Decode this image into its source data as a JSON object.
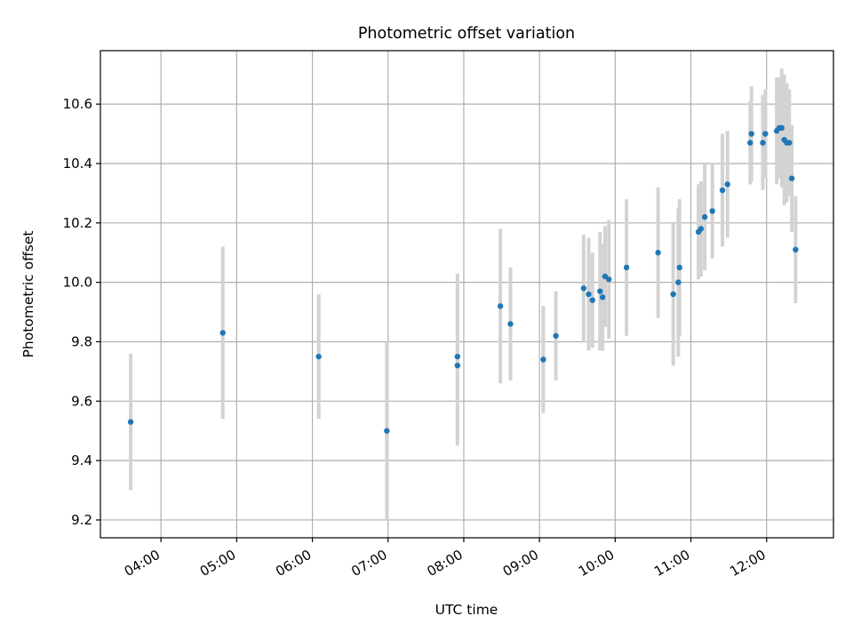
{
  "chart_data": {
    "type": "scatter",
    "title": "Photometric offset variation",
    "xlabel": "UTC time",
    "ylabel": "Photometric offset",
    "x_ticks": [
      "04:00",
      "05:00",
      "06:00",
      "07:00",
      "08:00",
      "09:00",
      "10:00",
      "11:00",
      "12:00"
    ],
    "y_ticks": [
      "9.2",
      "9.4",
      "9.6",
      "9.8",
      "10.0",
      "10.2",
      "10.4",
      "10.6"
    ],
    "xlim": [
      "03:12",
      "12:53"
    ],
    "ylim": [
      9.14,
      10.78
    ],
    "grid": true,
    "colors": {
      "points": "#1f77b4",
      "errorbars": "#d3d3d3",
      "grid": "#b0b0b0"
    },
    "points": [
      {
        "x": "03:36",
        "y": 9.53,
        "err": 0.23
      },
      {
        "x": "04:49",
        "y": 9.83,
        "err": 0.29
      },
      {
        "x": "06:05",
        "y": 9.75,
        "err": 0.21
      },
      {
        "x": "06:59",
        "y": 9.5,
        "err": 0.3
      },
      {
        "x": "07:55",
        "y": 9.72,
        "err": 0.27
      },
      {
        "x": "07:55",
        "y": 9.75,
        "err": 0.28
      },
      {
        "x": "08:29",
        "y": 9.92,
        "err": 0.26
      },
      {
        "x": "08:37",
        "y": 9.86,
        "err": 0.19
      },
      {
        "x": "09:03",
        "y": 9.74,
        "err": 0.18
      },
      {
        "x": "09:13",
        "y": 9.82,
        "err": 0.15
      },
      {
        "x": "09:35",
        "y": 9.98,
        "err": 0.18
      },
      {
        "x": "09:39",
        "y": 9.96,
        "err": 0.19
      },
      {
        "x": "09:42",
        "y": 9.94,
        "err": 0.16
      },
      {
        "x": "09:48",
        "y": 9.97,
        "err": 0.2
      },
      {
        "x": "09:50",
        "y": 9.95,
        "err": 0.18
      },
      {
        "x": "09:52",
        "y": 10.02,
        "err": 0.17
      },
      {
        "x": "09:55",
        "y": 10.01,
        "err": 0.2
      },
      {
        "x": "10:09",
        "y": 10.05,
        "err": 0.23
      },
      {
        "x": "10:34",
        "y": 10.1,
        "err": 0.22
      },
      {
        "x": "10:46",
        "y": 9.96,
        "err": 0.24
      },
      {
        "x": "10:50",
        "y": 10.0,
        "err": 0.25
      },
      {
        "x": "10:51",
        "y": 10.05,
        "err": 0.23
      },
      {
        "x": "11:06",
        "y": 10.17,
        "err": 0.16
      },
      {
        "x": "11:08",
        "y": 10.18,
        "err": 0.16
      },
      {
        "x": "11:11",
        "y": 10.22,
        "err": 0.18
      },
      {
        "x": "11:17",
        "y": 10.24,
        "err": 0.16
      },
      {
        "x": "11:25",
        "y": 10.31,
        "err": 0.19
      },
      {
        "x": "11:29",
        "y": 10.33,
        "err": 0.18
      },
      {
        "x": "11:47",
        "y": 10.47,
        "err": 0.14
      },
      {
        "x": "11:48",
        "y": 10.5,
        "err": 0.16
      },
      {
        "x": "11:57",
        "y": 10.47,
        "err": 0.16
      },
      {
        "x": "11:59",
        "y": 10.5,
        "err": 0.15
      },
      {
        "x": "12:08",
        "y": 10.51,
        "err": 0.18
      },
      {
        "x": "12:10",
        "y": 10.52,
        "err": 0.17
      },
      {
        "x": "12:12",
        "y": 10.52,
        "err": 0.2
      },
      {
        "x": "12:14",
        "y": 10.48,
        "err": 0.22
      },
      {
        "x": "12:16",
        "y": 10.47,
        "err": 0.2
      },
      {
        "x": "12:18",
        "y": 10.47,
        "err": 0.18
      },
      {
        "x": "12:20",
        "y": 10.35,
        "err": 0.18
      },
      {
        "x": "12:23",
        "y": 10.11,
        "err": 0.18
      }
    ]
  }
}
